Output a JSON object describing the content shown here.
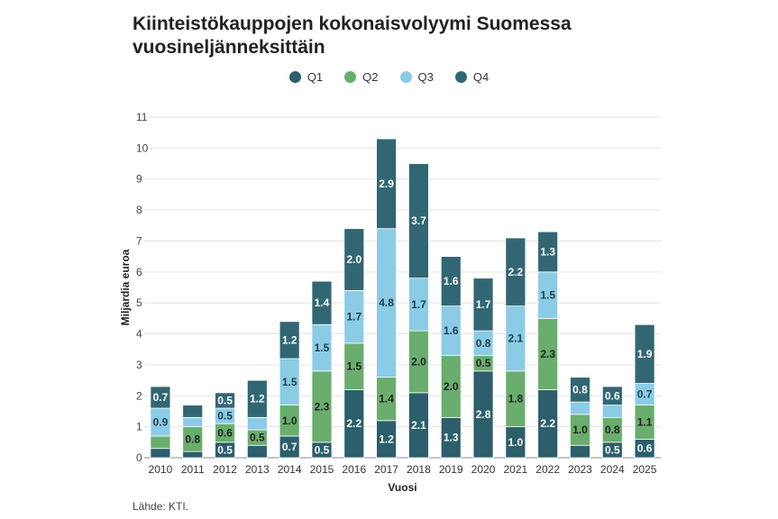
{
  "title_line1": "Kiinteistökauppojen kokonaisvolyymi Suomessa",
  "title_line2": "vuosineljänneksittäin",
  "source": "Lähde: KTI.",
  "chart_data": {
    "type": "bar",
    "stacked": true,
    "xlabel": "Vuosi",
    "ylabel": "Miljardia euroa",
    "ylim": [
      0,
      11
    ],
    "yticks": [
      0,
      1,
      2,
      3,
      4,
      5,
      6,
      7,
      8,
      9,
      10,
      11
    ],
    "grid": true,
    "legend_position": "top",
    "categories": [
      "2010",
      "2011",
      "2012",
      "2013",
      "2014",
      "2015",
      "2016",
      "2017",
      "2018",
      "2019",
      "2020",
      "2021",
      "2022",
      "2023",
      "2024",
      "2025"
    ],
    "series": [
      {
        "name": "Q1",
        "color": "#2d5e6b",
        "values": [
          0.3,
          0.2,
          0.5,
          0.4,
          0.7,
          0.5,
          2.2,
          1.2,
          2.1,
          1.3,
          2.8,
          1.0,
          2.2,
          0.4,
          0.5,
          0.6
        ]
      },
      {
        "name": "Q2",
        "color": "#6aad6e",
        "values": [
          0.4,
          0.8,
          0.6,
          0.5,
          1.0,
          2.3,
          1.5,
          1.4,
          2.0,
          2.0,
          0.5,
          1.8,
          2.3,
          1.0,
          0.8,
          1.1
        ]
      },
      {
        "name": "Q3",
        "color": "#8ccbe6",
        "values": [
          0.9,
          0.3,
          0.5,
          0.4,
          1.5,
          1.5,
          1.7,
          4.8,
          1.7,
          1.6,
          0.8,
          2.1,
          1.5,
          0.4,
          0.4,
          0.7
        ]
      },
      {
        "name": "Q4",
        "color": "#336673",
        "values": [
          0.7,
          0.4,
          0.5,
          1.2,
          1.2,
          1.4,
          2.0,
          2.9,
          3.7,
          1.6,
          1.7,
          2.2,
          1.3,
          0.8,
          0.6,
          1.9
        ]
      }
    ],
    "data_labels": [
      [
        null,
        null,
        "0.5",
        null,
        "0.7",
        "0.5",
        "2.2",
        "1.2",
        "2.1",
        "1.3",
        "2.8",
        "1.0",
        "2.2",
        null,
        "0.5",
        "0.6"
      ],
      [
        null,
        "0.8",
        "0.6",
        "0.5",
        "1.0",
        "2.3",
        "1.5",
        "1.4",
        "2.0",
        "2.0",
        "0.5",
        "1.8",
        "2.3",
        "1.0",
        "0.8",
        "1.1"
      ],
      [
        "0.9",
        null,
        "0.5",
        null,
        "1.5",
        "1.5",
        "1.7",
        "4.8",
        "1.7",
        "1.6",
        "0.8",
        "2.1",
        "1.5",
        null,
        null,
        "0.7"
      ],
      [
        "0.7",
        null,
        "0.5",
        "1.2",
        "1.2",
        "1.4",
        "2.0",
        "2.9",
        "3.7",
        "1.6",
        "1.7",
        "2.2",
        "1.3",
        "0.8",
        "0.6",
        "1.9"
      ]
    ]
  }
}
